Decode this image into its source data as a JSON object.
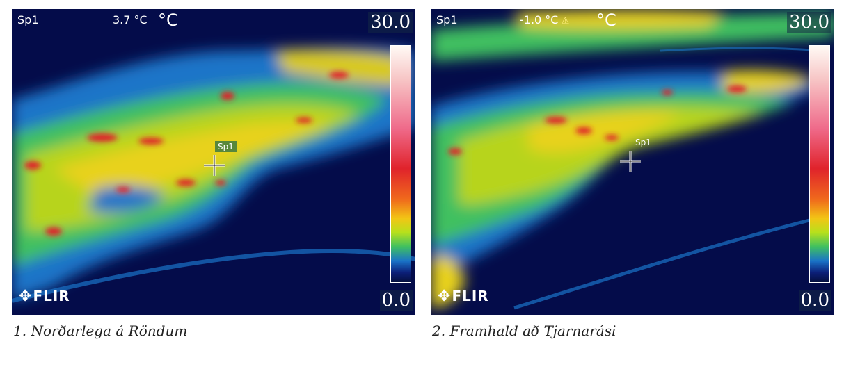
{
  "panels": [
    {
      "caption": "1. Norðarlega á Röndum",
      "spot_label": "Sp1",
      "spot_value": "3.7 °C",
      "unit": "°C",
      "scale_max": "30.0",
      "scale_min": "0.0",
      "spot_tag": "Sp1",
      "logo_text": "FLIR",
      "warning_icon": ""
    },
    {
      "caption": "2. Framhald að Tjarnarási",
      "spot_label": "Sp1",
      "spot_value": "-1.0 °C",
      "unit": "°C",
      "scale_max": "30.0",
      "scale_min": "0.0",
      "spot_tag": "Sp1",
      "logo_text": "FLIR",
      "warning_icon": "⚠"
    }
  ],
  "colors": {
    "background_dark": "#040c4a",
    "cool_blue": "#1a74c8",
    "warm_green": "#3fc060",
    "warm_yellow": "#e8d21a",
    "hot_red": "#e0232b"
  },
  "icons": [
    "crosshair-icon",
    "warning-icon",
    "flir-logo-icon"
  ]
}
